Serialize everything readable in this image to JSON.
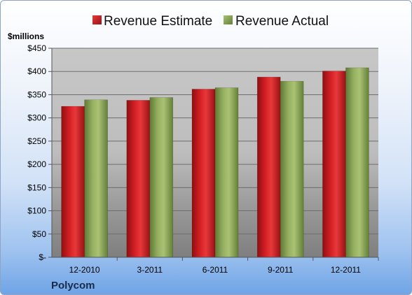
{
  "chart_data": {
    "type": "bar",
    "ylabel": "$millions",
    "ylim": [
      0,
      450
    ],
    "ytick_values": [
      0,
      50,
      100,
      150,
      200,
      250,
      300,
      350,
      400,
      450
    ],
    "ytick_labels": [
      "$-",
      "$50",
      "$100",
      "$150",
      "$200",
      "$250",
      "$300",
      "$350",
      "$400",
      "$450"
    ],
    "categories": [
      "12-2010",
      "3-2011",
      "6-2011",
      "9-2011",
      "12-2011"
    ],
    "series": [
      {
        "name": "Revenue Estimate",
        "color": "#c8181c",
        "values": [
          325,
          338,
          362,
          388,
          401
        ]
      },
      {
        "name": "Revenue Actual",
        "color": "#8ca45a",
        "values": [
          339,
          344,
          365,
          379,
          408
        ]
      }
    ],
    "grid": true,
    "legend": "top-center"
  },
  "company": "Polycom"
}
